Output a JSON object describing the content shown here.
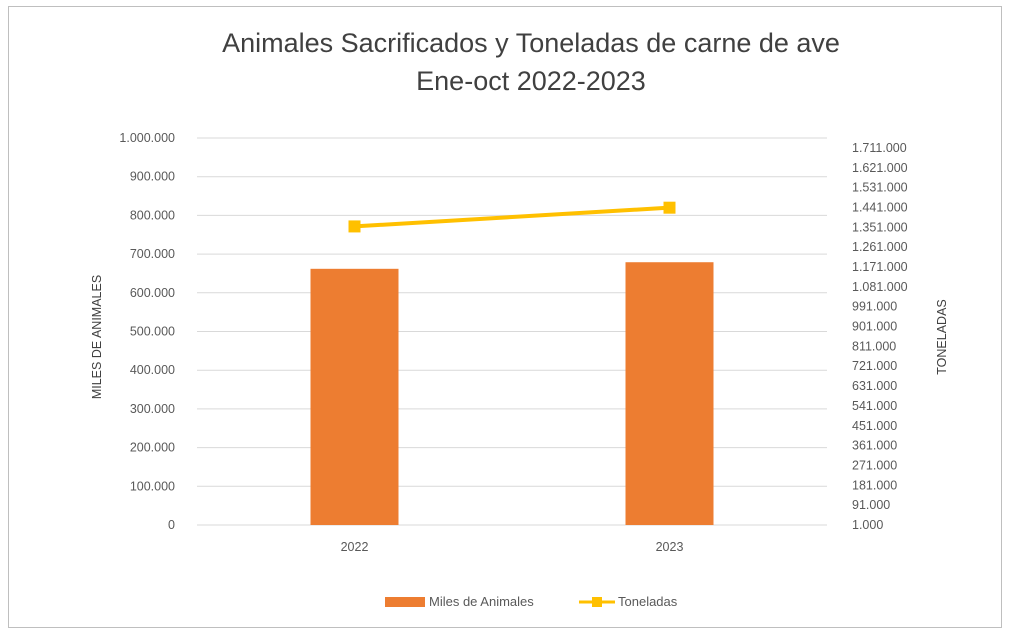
{
  "chart_data": {
    "type": "bar",
    "title": "Animales Sacrificados y Toneladas de carne de ave",
    "subtitle": "Ene-oct 2022-2023",
    "categories": [
      "2022",
      "2023"
    ],
    "series": [
      {
        "name": "Miles de Animales",
        "type": "bar",
        "axis": "left",
        "values": [
          662000,
          679000
        ],
        "color": "#ED7D31"
      },
      {
        "name": "Toneladas",
        "type": "line",
        "axis": "right",
        "values": [
          1355000,
          1440000
        ],
        "color": "#FFC000"
      }
    ],
    "ylabel": "MILES DE ANIMALES",
    "y2label": "TONELADAS",
    "ylim": [
      0,
      1000000
    ],
    "y2lim": [
      1000,
      1756000
    ],
    "yticks": [
      "0",
      "100.000",
      "200.000",
      "300.000",
      "400.000",
      "500.000",
      "600.000",
      "700.000",
      "800.000",
      "900.000",
      "1.000.000"
    ],
    "y2ticks": [
      "1.000",
      "91.000",
      "181.000",
      "271.000",
      "361.000",
      "451.000",
      "541.000",
      "631.000",
      "721.000",
      "811.000",
      "901.000",
      "991.000",
      "1.081.000",
      "1.171.000",
      "1.261.000",
      "1.351.000",
      "1.441.000",
      "1.531.000",
      "1.621.000",
      "1.711.000"
    ],
    "grid": true,
    "legend_position": "bottom"
  },
  "colors": {
    "gridline": "#d9d9d9",
    "text": "#595959"
  }
}
